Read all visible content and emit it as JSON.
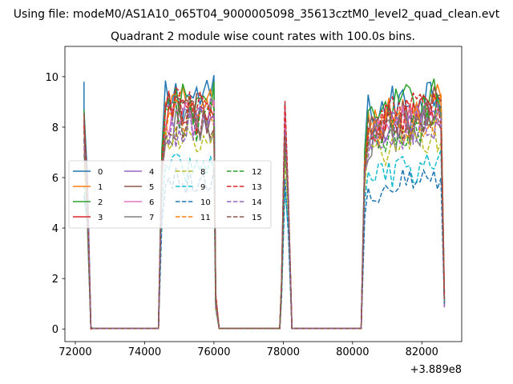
{
  "chart_data": {
    "type": "line",
    "suptitle": "Using file: modeM0/AS1A10_065T04_9000005098_35613cztM0_level2_quad_clean.evt",
    "title": "Quadrant 2 module wise count rates with 100.0s bins.",
    "xlabel": "",
    "ylabel": "",
    "x_offset_label": "+3.889e8",
    "xlim": [
      71700,
      83150
    ],
    "ylim": [
      -0.5,
      11.2
    ],
    "xticks": [
      72000,
      74000,
      76000,
      78000,
      80000,
      82000
    ],
    "yticks": [
      0,
      2,
      4,
      6,
      8,
      10
    ],
    "legend_location": "center-left",
    "legend_ncol": 4,
    "series": [
      {
        "name": "0",
        "color": "#1f77b4",
        "linestyle": "solid",
        "level": 9.2
      },
      {
        "name": "1",
        "color": "#ff7f0e",
        "linestyle": "solid",
        "level": 8.8
      },
      {
        "name": "2",
        "color": "#2ca02c",
        "linestyle": "solid",
        "level": 9.0
      },
      {
        "name": "3",
        "color": "#d62728",
        "linestyle": "solid",
        "level": 8.5
      },
      {
        "name": "4",
        "color": "#9467bd",
        "linestyle": "solid",
        "level": 8.3
      },
      {
        "name": "5",
        "color": "#8c564b",
        "linestyle": "solid",
        "level": 8.6
      },
      {
        "name": "6",
        "color": "#e377c2",
        "linestyle": "solid",
        "level": 8.4
      },
      {
        "name": "7",
        "color": "#7f7f7f",
        "linestyle": "solid",
        "level": 8.0
      },
      {
        "name": "8",
        "color": "#bcbd22",
        "linestyle": "dashed",
        "level": 7.4
      },
      {
        "name": "9",
        "color": "#17becf",
        "linestyle": "dashed",
        "level": 6.4
      },
      {
        "name": "10",
        "color": "#1f77b4",
        "linestyle": "dashed",
        "level": 5.9
      },
      {
        "name": "11",
        "color": "#ff7f0e",
        "linestyle": "dashed",
        "level": 8.3
      },
      {
        "name": "12",
        "color": "#2ca02c",
        "linestyle": "dashed",
        "level": 8.2
      },
      {
        "name": "13",
        "color": "#d62728",
        "linestyle": "dashed",
        "level": 8.7
      },
      {
        "name": "14",
        "color": "#9467bd",
        "linestyle": "dashed",
        "level": 8.0
      },
      {
        "name": "15",
        "color": "#8c564b",
        "linestyle": "dashed",
        "level": 8.3
      }
    ],
    "active_intervals": [
      [
        72250,
        72450
      ],
      [
        74500,
        76050
      ],
      [
        77950,
        78250
      ],
      [
        80350,
        82650
      ]
    ],
    "bin_width": 100
  }
}
